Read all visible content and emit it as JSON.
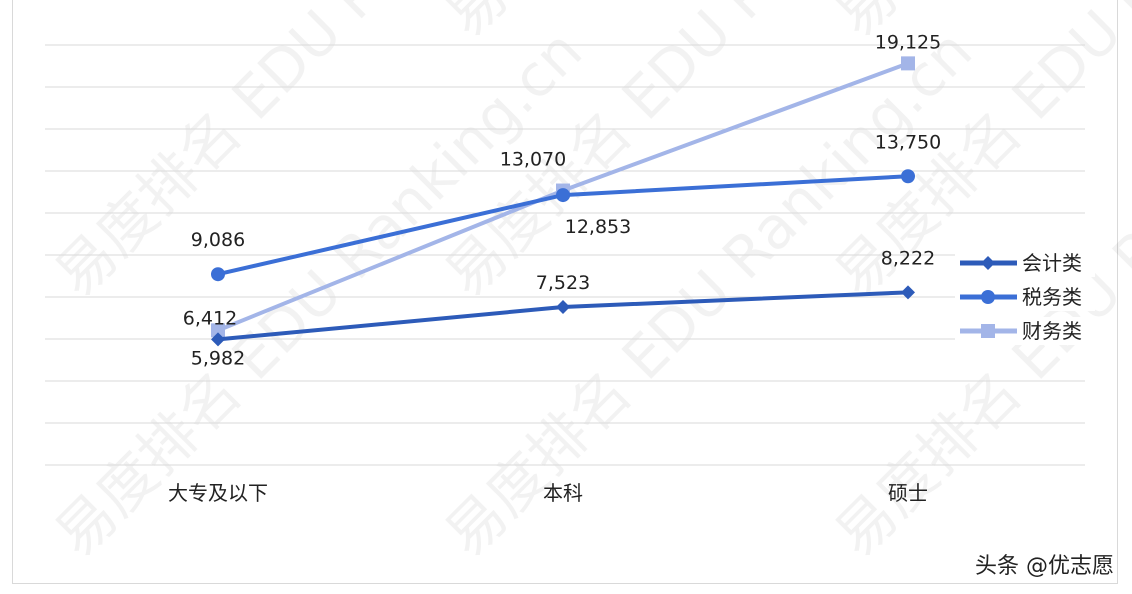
{
  "chart_data": {
    "type": "line",
    "categories": [
      "大专及以下",
      "本科",
      "硕士"
    ],
    "series": [
      {
        "name": "会计类",
        "values": [
          5982,
          7523,
          8222
        ],
        "color": "#2d5bb9",
        "marker": "diamond"
      },
      {
        "name": "税务类",
        "values": [
          9086,
          12853,
          13750
        ],
        "color": "#3b6fd6",
        "marker": "circle"
      },
      {
        "name": "财务类",
        "values": [
          6412,
          13070,
          19125
        ],
        "color": "#a3b5e8",
        "marker": "square"
      }
    ],
    "data_labels": [
      [
        "5,982",
        "7,523",
        "8,222"
      ],
      [
        "9,086",
        "12,853",
        "13,750"
      ],
      [
        "6,412",
        "13,070",
        "19,125"
      ]
    ],
    "ylim": [
      0,
      20000
    ],
    "ytick_step": 2000,
    "y_tick_labels_shown": false,
    "grid": true,
    "legend": "right",
    "title": "",
    "xlabel": "",
    "ylabel": ""
  },
  "watermark": "易度排名 EDU Ranking.cn",
  "credit": "头条 @优志愿"
}
